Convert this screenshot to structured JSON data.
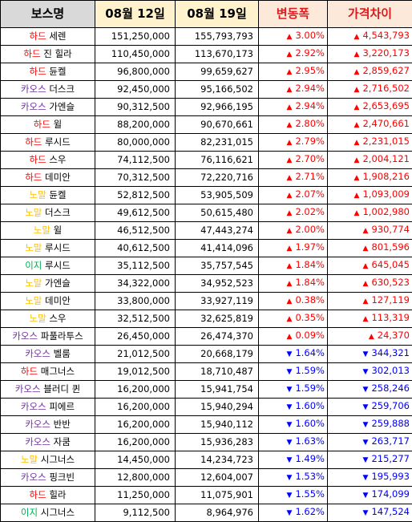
{
  "headers": {
    "boss": "보스명",
    "date1": "08월 12일",
    "date2": "08월 19일",
    "change": "변동폭",
    "diff": "가격차이"
  },
  "colors": {
    "hard": "#ff0000",
    "chaos": "#7030a0",
    "normal": "#ffc000",
    "easy": "#00b050",
    "up": "#ff0000",
    "down": "#0000ff",
    "header_gray": "#d9d9d9",
    "header_yellow": "#fff2cc",
    "header_pink": "#fde9d9"
  },
  "rows": [
    {
      "tag": "하드",
      "tagClass": "hard",
      "name": "세렌",
      "d1": "151,250,000",
      "d2": "155,793,793",
      "dir": "up",
      "change": "3.00%",
      "diff": "4,543,793"
    },
    {
      "tag": "하드",
      "tagClass": "hard",
      "name": "진 힐라",
      "d1": "110,450,000",
      "d2": "113,670,173",
      "dir": "up",
      "change": "2.92%",
      "diff": "3,220,173"
    },
    {
      "tag": "하드",
      "tagClass": "hard",
      "name": "듄켈",
      "d1": "96,800,000",
      "d2": "99,659,627",
      "dir": "up",
      "change": "2.95%",
      "diff": "2,859,627"
    },
    {
      "tag": "카오스",
      "tagClass": "chaos",
      "name": "더스크",
      "d1": "92,450,000",
      "d2": "95,166,502",
      "dir": "up",
      "change": "2.94%",
      "diff": "2,716,502"
    },
    {
      "tag": "카오스",
      "tagClass": "chaos",
      "name": "가엔슬",
      "d1": "90,312,500",
      "d2": "92,966,195",
      "dir": "up",
      "change": "2.94%",
      "diff": "2,653,695"
    },
    {
      "tag": "하드",
      "tagClass": "hard",
      "name": "윌",
      "d1": "88,200,000",
      "d2": "90,670,661",
      "dir": "up",
      "change": "2.80%",
      "diff": "2,470,661"
    },
    {
      "tag": "하드",
      "tagClass": "hard",
      "name": "루시드",
      "d1": "80,000,000",
      "d2": "82,231,015",
      "dir": "up",
      "change": "2.79%",
      "diff": "2,231,015"
    },
    {
      "tag": "하드",
      "tagClass": "hard",
      "name": "스우",
      "d1": "74,112,500",
      "d2": "76,116,621",
      "dir": "up",
      "change": "2.70%",
      "diff": "2,004,121"
    },
    {
      "tag": "하드",
      "tagClass": "hard",
      "name": "데미안",
      "d1": "70,312,500",
      "d2": "72,220,716",
      "dir": "up",
      "change": "2.71%",
      "diff": "1,908,216"
    },
    {
      "tag": "노말",
      "tagClass": "normal",
      "name": "듄켈",
      "d1": "52,812,500",
      "d2": "53,905,509",
      "dir": "up",
      "change": "2.07%",
      "diff": "1,093,009"
    },
    {
      "tag": "노말",
      "tagClass": "normal",
      "name": "더스크",
      "d1": "49,612,500",
      "d2": "50,615,480",
      "dir": "up",
      "change": "2.02%",
      "diff": "1,002,980"
    },
    {
      "tag": "노말",
      "tagClass": "normal",
      "name": "윌",
      "d1": "46,512,500",
      "d2": "47,443,274",
      "dir": "up",
      "change": "2.00%",
      "diff": "930,774"
    },
    {
      "tag": "노말",
      "tagClass": "normal",
      "name": "루시드",
      "d1": "40,612,500",
      "d2": "41,414,096",
      "dir": "up",
      "change": "1.97%",
      "diff": "801,596"
    },
    {
      "tag": "이지",
      "tagClass": "easy",
      "name": "루시드",
      "d1": "35,112,500",
      "d2": "35,757,545",
      "dir": "up",
      "change": "1.84%",
      "diff": "645,045"
    },
    {
      "tag": "노말",
      "tagClass": "normal",
      "name": "가엔슬",
      "d1": "34,322,000",
      "d2": "34,952,523",
      "dir": "up",
      "change": "1.84%",
      "diff": "630,523"
    },
    {
      "tag": "노말",
      "tagClass": "normal",
      "name": "데미안",
      "d1": "33,800,000",
      "d2": "33,927,119",
      "dir": "up",
      "change": "0.38%",
      "diff": "127,119"
    },
    {
      "tag": "노말",
      "tagClass": "normal",
      "name": "스우",
      "d1": "32,512,500",
      "d2": "32,625,819",
      "dir": "up",
      "change": "0.35%",
      "diff": "113,319"
    },
    {
      "tag": "카오스",
      "tagClass": "chaos",
      "name": "파풀라투스",
      "d1": "26,450,000",
      "d2": "26,474,370",
      "dir": "up",
      "change": "0.09%",
      "diff": "24,370"
    },
    {
      "tag": "카오스",
      "tagClass": "chaos",
      "name": "벨룸",
      "d1": "21,012,500",
      "d2": "20,668,179",
      "dir": "down",
      "change": "1.64%",
      "diff": "344,321"
    },
    {
      "tag": "하드",
      "tagClass": "hard",
      "name": "매그너스",
      "d1": "19,012,500",
      "d2": "18,710,487",
      "dir": "down",
      "change": "1.59%",
      "diff": "302,013"
    },
    {
      "tag": "카오스",
      "tagClass": "chaos",
      "name": "블러디 퀸",
      "d1": "16,200,000",
      "d2": "15,941,754",
      "dir": "down",
      "change": "1.59%",
      "diff": "258,246"
    },
    {
      "tag": "카오스",
      "tagClass": "chaos",
      "name": "피에르",
      "d1": "16,200,000",
      "d2": "15,940,294",
      "dir": "down",
      "change": "1.60%",
      "diff": "259,706"
    },
    {
      "tag": "카오스",
      "tagClass": "chaos",
      "name": "반반",
      "d1": "16,200,000",
      "d2": "15,940,112",
      "dir": "down",
      "change": "1.60%",
      "diff": "259,888"
    },
    {
      "tag": "카오스",
      "tagClass": "chaos",
      "name": "자쿰",
      "d1": "16,200,000",
      "d2": "15,936,283",
      "dir": "down",
      "change": "1.63%",
      "diff": "263,717"
    },
    {
      "tag": "노말",
      "tagClass": "normal",
      "name": "시그너스",
      "d1": "14,450,000",
      "d2": "14,234,723",
      "dir": "down",
      "change": "1.49%",
      "diff": "215,277"
    },
    {
      "tag": "카오스",
      "tagClass": "chaos",
      "name": "핑크빈",
      "d1": "12,800,000",
      "d2": "12,604,007",
      "dir": "down",
      "change": "1.53%",
      "diff": "195,993"
    },
    {
      "tag": "하드",
      "tagClass": "hard",
      "name": "힐라",
      "d1": "11,250,000",
      "d2": "11,075,901",
      "dir": "down",
      "change": "1.55%",
      "diff": "174,099"
    },
    {
      "tag": "이지",
      "tagClass": "easy",
      "name": "시그너스",
      "d1": "9,112,500",
      "d2": "8,964,976",
      "dir": "down",
      "change": "1.62%",
      "diff": "147,524"
    }
  ]
}
